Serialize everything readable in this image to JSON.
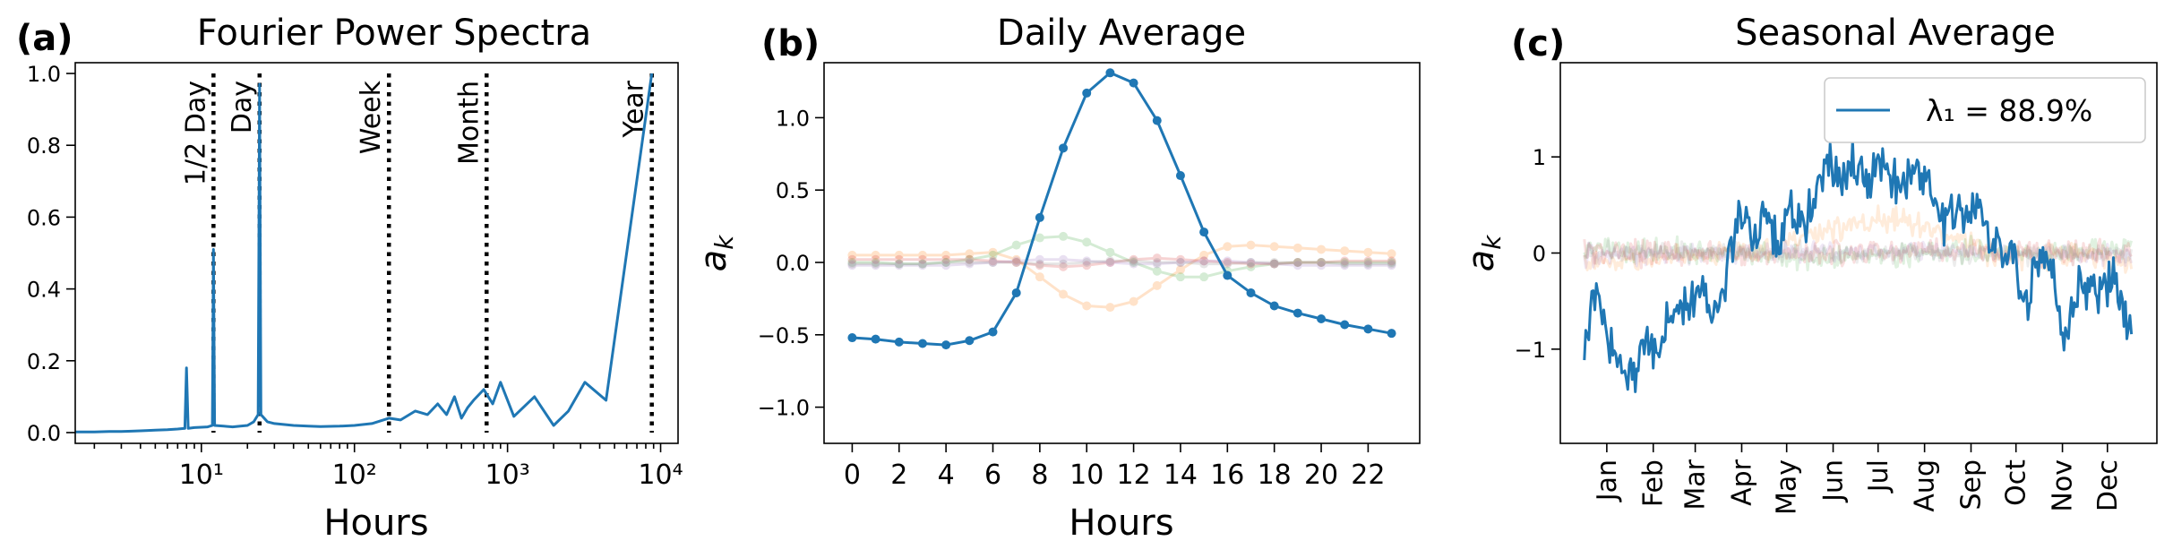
{
  "figure": {
    "panel_a": {
      "letter": "(a)",
      "title": "Fourier Power Spectra",
      "xlabel": "Hours"
    },
    "panel_b": {
      "letter": "(b)",
      "title": "Daily Average",
      "xlabel": "Hours",
      "ylabel": "a_k"
    },
    "panel_c": {
      "letter": "(c)",
      "title": "Seasonal Average",
      "ylabel": "a_k",
      "legend_label": "λ₁ = 88.9%"
    }
  },
  "colors": {
    "primary": "#1f77b4",
    "orange": "#ff7f0e",
    "green": "#2ca02c",
    "red": "#d62728",
    "purple": "#9467bd",
    "gray": "#7f7f7f"
  },
  "chart_data": [
    {
      "type": "line",
      "title": "Fourier Power Spectra",
      "xlabel": "Hours",
      "ylabel": "",
      "xscale": "log",
      "xlim": [
        1.5,
        13000
      ],
      "ylim": [
        -0.03,
        1.03
      ],
      "xticks": [
        {
          "value": 10,
          "label": "10¹"
        },
        {
          "value": 100,
          "label": "10²"
        },
        {
          "value": 1000,
          "label": "10³"
        },
        {
          "value": 10000,
          "label": "10⁴"
        }
      ],
      "yticks": [
        0.0,
        0.2,
        0.4,
        0.6,
        0.8,
        1.0
      ],
      "ytick_labels": [
        "0.0",
        "0.2",
        "0.4",
        "0.6",
        "0.8",
        "1.0"
      ],
      "grid": false,
      "series": [
        {
          "color": "#1f77b4",
          "points": [
            [
              1.5,
              0.002
            ],
            [
              2,
              0.002
            ],
            [
              2.5,
              0.003
            ],
            [
              3,
              0.003
            ],
            [
              3.5,
              0.004
            ],
            [
              4,
              0.005
            ],
            [
              4.5,
              0.006
            ],
            [
              5,
              0.007
            ],
            [
              6,
              0.008
            ],
            [
              7,
              0.01
            ],
            [
              7.8,
              0.012
            ],
            [
              8,
              0.18
            ],
            [
              8.2,
              0.012
            ],
            [
              9,
              0.014
            ],
            [
              10,
              0.015
            ],
            [
              11,
              0.016
            ],
            [
              11.8,
              0.02
            ],
            [
              12,
              0.51
            ],
            [
              12.2,
              0.02
            ],
            [
              14,
              0.018
            ],
            [
              16,
              0.016
            ],
            [
              18,
              0.018
            ],
            [
              20,
              0.02
            ],
            [
              22,
              0.03
            ],
            [
              23.5,
              0.05
            ],
            [
              24,
              0.97
            ],
            [
              24.5,
              0.05
            ],
            [
              27,
              0.03
            ],
            [
              30,
              0.025
            ],
            [
              40,
              0.02
            ],
            [
              50,
              0.018
            ],
            [
              60,
              0.017
            ],
            [
              80,
              0.018
            ],
            [
              100,
              0.02
            ],
            [
              130,
              0.025
            ],
            [
              168,
              0.04
            ],
            [
              200,
              0.035
            ],
            [
              250,
              0.06
            ],
            [
              300,
              0.05
            ],
            [
              350,
              0.08
            ],
            [
              400,
              0.05
            ],
            [
              450,
              0.1
            ],
            [
              500,
              0.04
            ],
            [
              550,
              0.07
            ],
            [
              600,
              0.09
            ],
            [
              700,
              0.12
            ],
            [
              800,
              0.08
            ],
            [
              900,
              0.14
            ],
            [
              1100,
              0.045
            ],
            [
              1500,
              0.1
            ],
            [
              2000,
              0.02
            ],
            [
              2500,
              0.06
            ],
            [
              3200,
              0.14
            ],
            [
              4400,
              0.09
            ],
            [
              8760,
              1.0
            ]
          ]
        }
      ],
      "annotations": [
        {
          "x": 12,
          "label": "1/2 Day"
        },
        {
          "x": 24,
          "label": "Day"
        },
        {
          "x": 168,
          "label": "Week"
        },
        {
          "x": 730,
          "label": "Month"
        },
        {
          "x": 8760,
          "label": "Year"
        }
      ]
    },
    {
      "type": "line",
      "title": "Daily Average",
      "xlabel": "Hours",
      "ylabel": "a_k",
      "xlim": [
        -1.2,
        24.2
      ],
      "ylim": [
        -1.25,
        1.38
      ],
      "xticks": [
        0,
        2,
        4,
        6,
        8,
        10,
        12,
        14,
        16,
        18,
        20,
        22
      ],
      "yticks": [
        -1.0,
        -0.5,
        0.0,
        0.5,
        1.0
      ],
      "ytick_labels": [
        "−1.0",
        "−0.5",
        "0.0",
        "0.5",
        "1.0"
      ],
      "grid": false,
      "series": [
        {
          "color": "#1f77b4",
          "opacity": 1,
          "markers": true,
          "x": [
            0,
            1,
            2,
            3,
            4,
            5,
            6,
            7,
            8,
            9,
            10,
            11,
            12,
            13,
            14,
            15,
            16,
            17,
            18,
            19,
            20,
            21,
            22,
            23
          ],
          "values": [
            -0.52,
            -0.53,
            -0.55,
            -0.56,
            -0.57,
            -0.54,
            -0.48,
            -0.21,
            0.31,
            0.79,
            1.17,
            1.31,
            1.24,
            0.98,
            0.6,
            0.21,
            -0.09,
            -0.21,
            -0.3,
            -0.35,
            -0.39,
            -0.43,
            -0.46,
            -0.49
          ]
        },
        {
          "color": "#ff7f0e",
          "opacity": 0.22,
          "markers": true,
          "x": [
            0,
            1,
            2,
            3,
            4,
            5,
            6,
            7,
            8,
            9,
            10,
            11,
            12,
            13,
            14,
            15,
            16,
            17,
            18,
            19,
            20,
            21,
            22,
            23
          ],
          "values": [
            0.05,
            0.05,
            0.05,
            0.05,
            0.05,
            0.06,
            0.07,
            0.02,
            -0.1,
            -0.22,
            -0.3,
            -0.31,
            -0.27,
            -0.16,
            -0.05,
            0.05,
            0.11,
            0.12,
            0.11,
            0.1,
            0.09,
            0.08,
            0.07,
            0.06
          ]
        },
        {
          "color": "#2ca02c",
          "opacity": 0.2,
          "markers": true,
          "x": [
            0,
            1,
            2,
            3,
            4,
            5,
            6,
            7,
            8,
            9,
            10,
            11,
            12,
            13,
            14,
            15,
            16,
            17,
            18,
            19,
            20,
            21,
            22,
            23
          ],
          "values": [
            0.0,
            0.0,
            -0.01,
            -0.01,
            0.0,
            0.02,
            0.05,
            0.12,
            0.17,
            0.18,
            0.14,
            0.07,
            0.0,
            -0.06,
            -0.1,
            -0.1,
            -0.06,
            -0.03,
            -0.01,
            0.0,
            0.0,
            0.0,
            0.0,
            0.0
          ]
        },
        {
          "color": "#d62728",
          "opacity": 0.2,
          "markers": true,
          "x": [
            0,
            1,
            2,
            3,
            4,
            5,
            6,
            7,
            8,
            9,
            10,
            11,
            12,
            13,
            14,
            15,
            16,
            17,
            18,
            19,
            20,
            21,
            22,
            23
          ],
          "values": [
            0.02,
            0.02,
            0.02,
            0.02,
            0.02,
            0.02,
            0.01,
            0.0,
            -0.02,
            -0.03,
            -0.02,
            0.0,
            0.02,
            0.03,
            0.02,
            0.01,
            0.0,
            -0.01,
            -0.01,
            0.0,
            0.0,
            0.01,
            0.01,
            0.01
          ]
        },
        {
          "color": "#9467bd",
          "opacity": 0.2,
          "markers": true,
          "x": [
            0,
            1,
            2,
            3,
            4,
            5,
            6,
            7,
            8,
            9,
            10,
            11,
            12,
            13,
            14,
            15,
            16,
            17,
            18,
            19,
            20,
            21,
            22,
            23
          ],
          "values": [
            -0.02,
            -0.02,
            -0.02,
            -0.02,
            -0.02,
            -0.01,
            0.0,
            0.01,
            0.02,
            0.02,
            0.01,
            0.0,
            -0.01,
            -0.01,
            0.0,
            0.01,
            0.01,
            0.0,
            -0.01,
            -0.02,
            -0.02,
            -0.02,
            -0.02,
            -0.02
          ]
        },
        {
          "color": "#7f7f7f",
          "opacity": 0.2,
          "markers": true,
          "x": [
            0,
            1,
            2,
            3,
            4,
            5,
            6,
            7,
            8,
            9,
            10,
            11,
            12,
            13,
            14,
            15,
            16,
            17,
            18,
            19,
            20,
            21,
            22,
            23
          ],
          "values": [
            -0.01,
            -0.01,
            -0.01,
            -0.01,
            0.0,
            0.0,
            0.0,
            0.0,
            -0.01,
            -0.01,
            0.0,
            0.01,
            0.01,
            0.0,
            0.0,
            -0.01,
            -0.01,
            0.0,
            0.0,
            0.0,
            0.0,
            -0.01,
            -0.01,
            -0.01
          ]
        }
      ]
    },
    {
      "type": "line",
      "title": "Seasonal Average",
      "xlabel": "",
      "ylabel": "a_k",
      "xlim": [
        -16,
        382
      ],
      "ylim": [
        -1.98,
        1.98
      ],
      "xticks": [
        {
          "value": 15,
          "label": "Jan"
        },
        {
          "value": 46,
          "label": "Feb"
        },
        {
          "value": 74,
          "label": "Mar"
        },
        {
          "value": 105,
          "label": "Apr"
        },
        {
          "value": 135,
          "label": "May"
        },
        {
          "value": 166,
          "label": "Jun"
        },
        {
          "value": 196,
          "label": "Jul"
        },
        {
          "value": 227,
          "label": "Aug"
        },
        {
          "value": 258,
          "label": "Sep"
        },
        {
          "value": 288,
          "label": "Oct"
        },
        {
          "value": 319,
          "label": "Nov"
        },
        {
          "value": 349,
          "label": "Dec"
        }
      ],
      "yticks": [
        -1,
        0,
        1
      ],
      "ytick_labels": [
        "−1",
        "0",
        "1"
      ],
      "grid": false,
      "legend": {
        "position": "top-right",
        "entries": [
          {
            "label": "λ₁ = 88.9%",
            "color": "#1f77b4"
          }
        ]
      },
      "series": [
        {
          "color": "#1f77b4",
          "opacity": 1,
          "main": true,
          "seed": 1,
          "noise": 0.13,
          "anchors": [
            [
              0,
              -1.05
            ],
            [
              8,
              -0.35
            ],
            [
              14,
              -0.85
            ],
            [
              22,
              -1.2
            ],
            [
              30,
              -1.3
            ],
            [
              40,
              -0.95
            ],
            [
              50,
              -0.95
            ],
            [
              60,
              -0.5
            ],
            [
              70,
              -0.6
            ],
            [
              78,
              -0.35
            ],
            [
              86,
              -0.55
            ],
            [
              95,
              -0.2
            ],
            [
              104,
              0.55
            ],
            [
              112,
              0.1
            ],
            [
              120,
              0.5
            ],
            [
              128,
              0.1
            ],
            [
              136,
              0.5
            ],
            [
              145,
              0.3
            ],
            [
              155,
              0.55
            ],
            [
              165,
              1.0
            ],
            [
              172,
              0.7
            ],
            [
              180,
              0.85
            ],
            [
              190,
              0.75
            ],
            [
              200,
              0.9
            ],
            [
              210,
              0.55
            ],
            [
              220,
              0.95
            ],
            [
              230,
              0.7
            ],
            [
              240,
              0.3
            ],
            [
              250,
              0.5
            ],
            [
              262,
              0.45
            ],
            [
              272,
              0.15
            ],
            [
              280,
              0.1
            ],
            [
              290,
              -0.3
            ],
            [
              296,
              -0.5
            ],
            [
              304,
              0.0
            ],
            [
              312,
              -0.2
            ],
            [
              320,
              -0.95
            ],
            [
              328,
              -0.5
            ],
            [
              336,
              -0.3
            ],
            [
              345,
              -0.35
            ],
            [
              355,
              -0.35
            ],
            [
              365,
              -0.8
            ]
          ]
        },
        {
          "color": "#ff7f0e",
          "opacity": 0.15,
          "seed": 2,
          "noise": 0.06,
          "anchors": [
            [
              0,
              -0.1
            ],
            [
              30,
              -0.1
            ],
            [
              60,
              -0.05
            ],
            [
              90,
              0.0
            ],
            [
              120,
              0.05
            ],
            [
              150,
              0.2
            ],
            [
              180,
              0.3
            ],
            [
              210,
              0.35
            ],
            [
              240,
              0.2
            ],
            [
              270,
              0.0
            ],
            [
              300,
              -0.05
            ],
            [
              330,
              0.0
            ],
            [
              365,
              -0.1
            ]
          ]
        },
        {
          "color": "#2ca02c",
          "opacity": 0.15,
          "seed": 3,
          "noise": 0.06,
          "anchors": [
            [
              0,
              0.05
            ],
            [
              50,
              0.02
            ],
            [
              100,
              0.0
            ],
            [
              150,
              -0.05
            ],
            [
              200,
              -0.02
            ],
            [
              250,
              0.02
            ],
            [
              300,
              0.0
            ],
            [
              365,
              0.05
            ]
          ]
        },
        {
          "color": "#d62728",
          "opacity": 0.15,
          "seed": 4,
          "noise": 0.06,
          "anchors": [
            [
              0,
              0.02
            ],
            [
              60,
              0.0
            ],
            [
              120,
              -0.02
            ],
            [
              180,
              0.0
            ],
            [
              240,
              0.02
            ],
            [
              300,
              0.0
            ],
            [
              365,
              0.0
            ]
          ]
        },
        {
          "color": "#9467bd",
          "opacity": 0.15,
          "seed": 5,
          "noise": 0.05,
          "anchors": [
            [
              0,
              -0.02
            ],
            [
              90,
              0.0
            ],
            [
              180,
              0.02
            ],
            [
              270,
              0.0
            ],
            [
              365,
              -0.02
            ]
          ]
        },
        {
          "color": "#7f7f7f",
          "opacity": 0.15,
          "seed": 6,
          "noise": 0.05,
          "anchors": [
            [
              0,
              0.0
            ],
            [
              120,
              0.02
            ],
            [
              240,
              -0.02
            ],
            [
              365,
              0.0
            ]
          ]
        }
      ]
    }
  ]
}
